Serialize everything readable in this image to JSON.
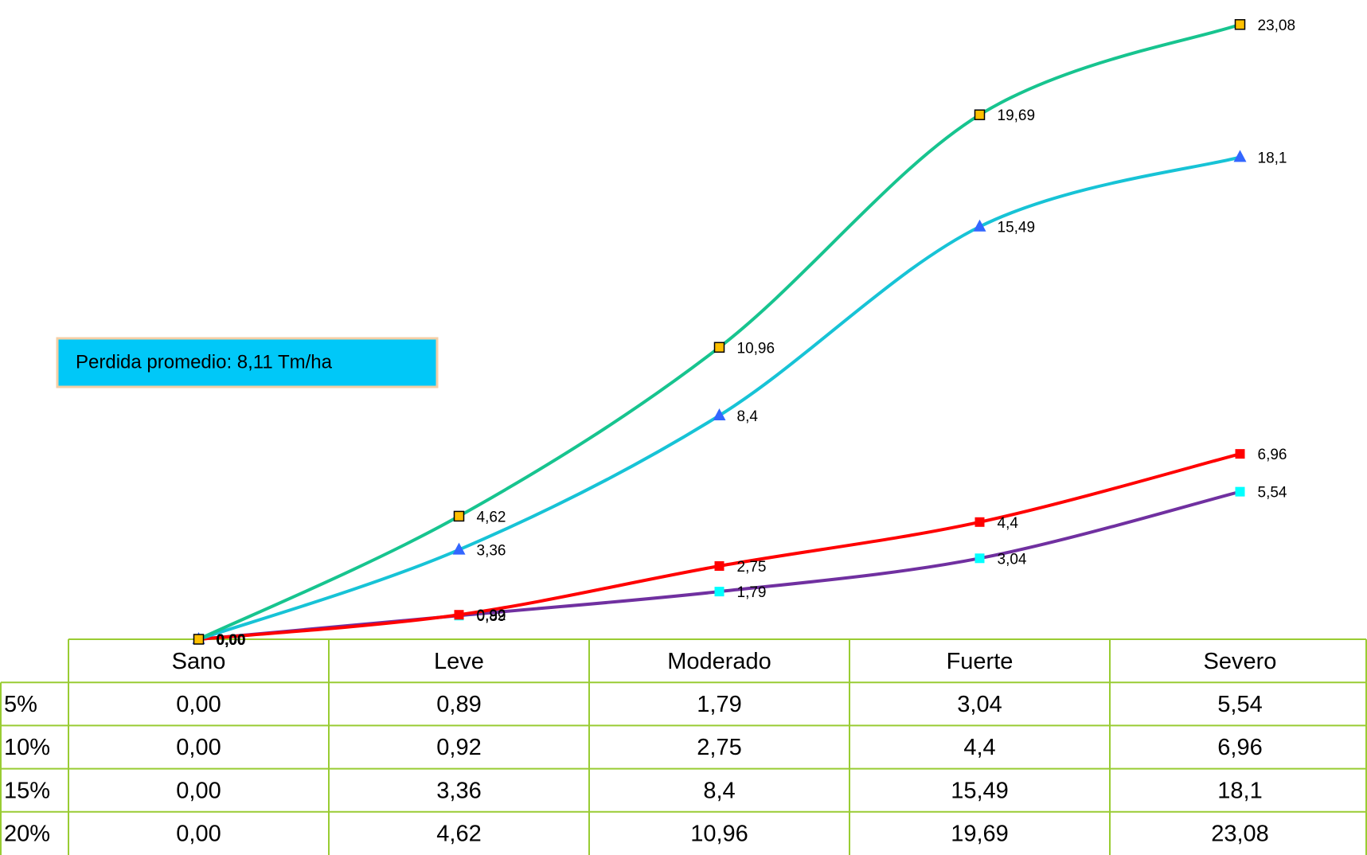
{
  "chart_data": {
    "type": "line",
    "categories": [
      "Sano",
      "Leve",
      "Moderado",
      "Fuerte",
      "Severo"
    ],
    "series": [
      {
        "name": "5%",
        "color": "#7030a0",
        "marker": "square",
        "marker_color": "#00ffff",
        "values": [
          0,
          0.89,
          1.79,
          3.04,
          5.54
        ],
        "value_labels": [
          "0,00",
          "0,89",
          "1,79",
          "3,04",
          "5,54"
        ]
      },
      {
        "name": "10%",
        "color": "#ff0000",
        "marker": "square",
        "marker_color": "#ff0000",
        "values": [
          0,
          0.92,
          2.75,
          4.4,
          6.96
        ],
        "value_labels": [
          "0,00",
          "0,92",
          "2,75",
          "4,4",
          "6,96"
        ]
      },
      {
        "name": "15%",
        "color": "#17c3d6",
        "marker": "triangle",
        "marker_color": "#3366ff",
        "values": [
          0,
          3.36,
          8.4,
          15.49,
          18.1
        ],
        "value_labels": [
          "0,00",
          "3,36",
          "8,4",
          "15,49",
          "18,1"
        ]
      },
      {
        "name": "20%",
        "color": "#17c48f",
        "marker": "square-outline",
        "marker_color": "#ffc000",
        "values": [
          0,
          4.62,
          10.96,
          19.69,
          23.08
        ],
        "value_labels": [
          "0,00",
          "4,62",
          "10,96",
          "19,69",
          "23,08"
        ]
      }
    ],
    "ylim": [
      0,
      24
    ],
    "smooth": true,
    "annotation": "Perdida promedio:  8,11 Tm/ha"
  }
}
